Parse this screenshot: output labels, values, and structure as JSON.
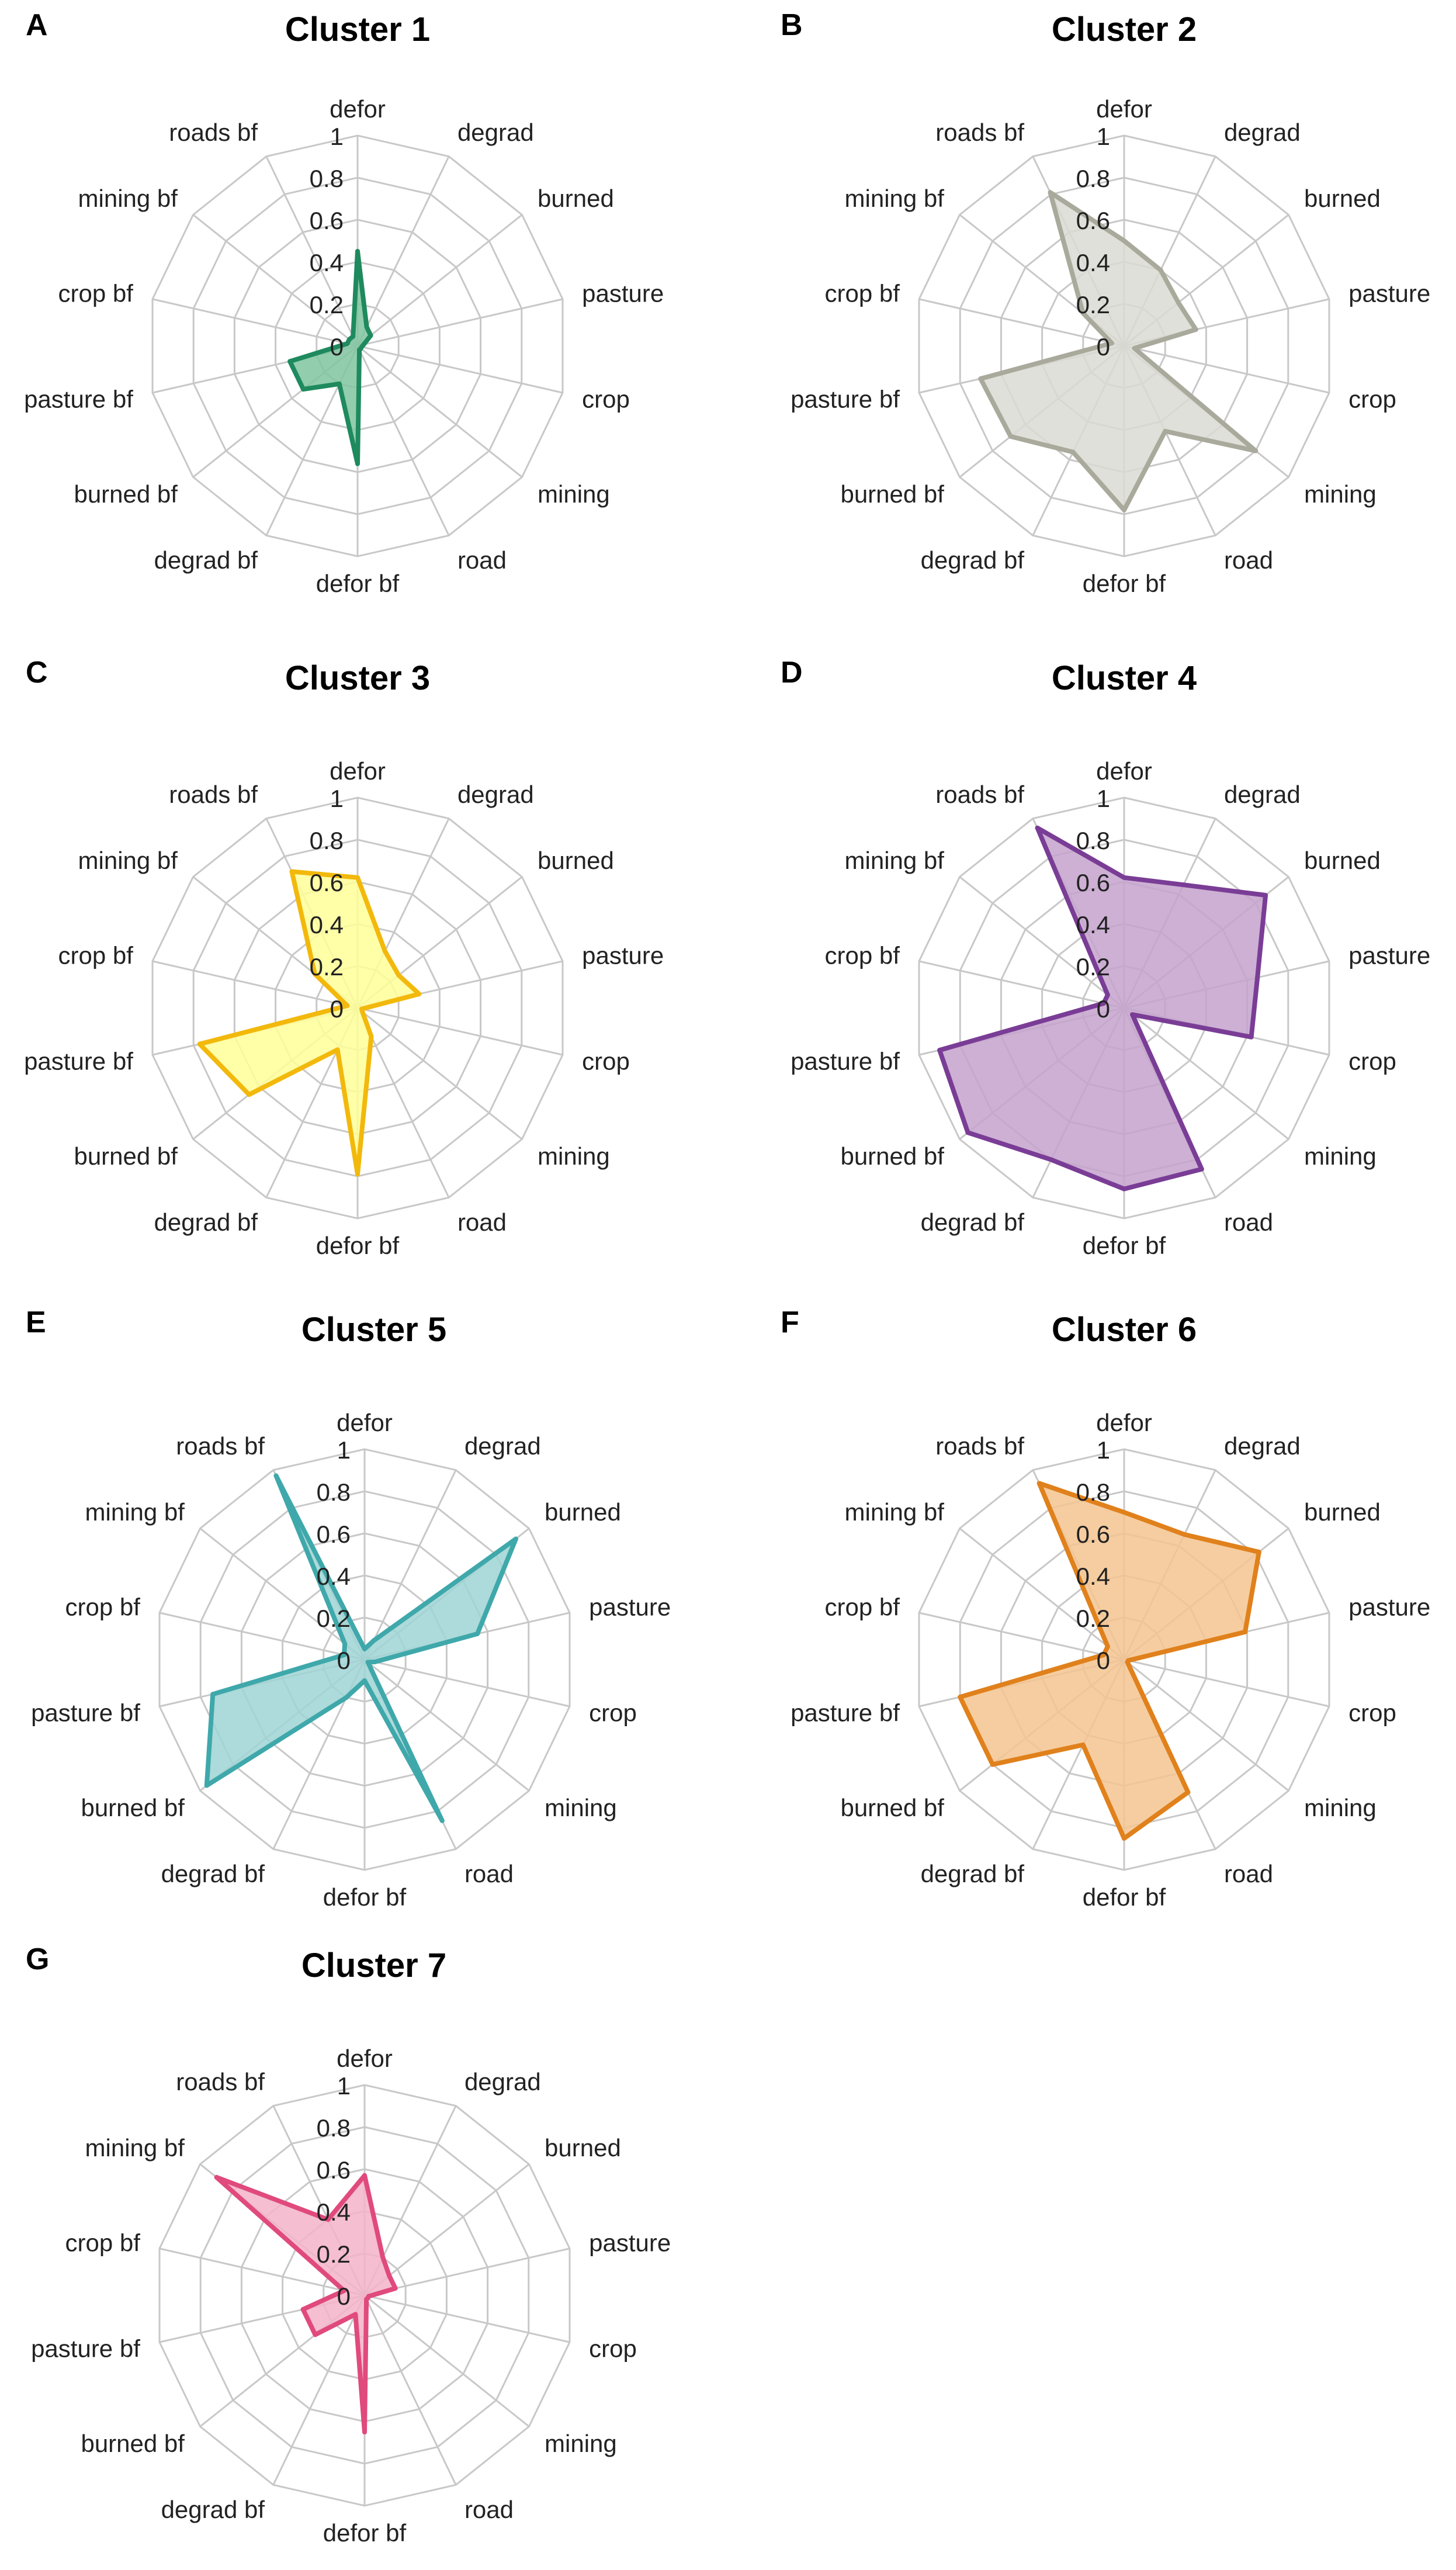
{
  "figure": {
    "grid_color": "#c8c8c8",
    "text_color": "#222222"
  },
  "chart_data": [
    {
      "panel_label": "A",
      "type": "radar",
      "title": "Cluster 1",
      "axes": [
        "defor",
        "degrad",
        "burned",
        "pasture",
        "crop",
        "mining",
        "road",
        "defor bf",
        "degrad bf",
        "burned bf",
        "pasture bf",
        "crop bf",
        "mining bf",
        "roads bf"
      ],
      "ticks": [
        "0",
        "0.2",
        "0.4",
        "0.6",
        "0.8",
        "1"
      ],
      "rlim": [
        0,
        1
      ],
      "values": [
        0.45,
        0.1,
        0.08,
        0.03,
        0.02,
        0.02,
        0.02,
        0.56,
        0.2,
        0.33,
        0.33,
        0.05,
        0.05,
        0.05
      ],
      "stroke": "#1e8a5e",
      "fill": "#7fc4a0"
    },
    {
      "panel_label": "B",
      "type": "radar",
      "title": "Cluster 2",
      "axes": [
        "defor",
        "degrad",
        "burned",
        "pasture",
        "crop",
        "mining",
        "road",
        "defor bf",
        "degrad bf",
        "burned bf",
        "pasture bf",
        "crop bf",
        "mining bf",
        "roads bf"
      ],
      "ticks": [
        "0",
        "0.2",
        "0.4",
        "0.6",
        "0.8",
        "1"
      ],
      "rlim": [
        0,
        1
      ],
      "values": [
        0.5,
        0.4,
        0.33,
        0.35,
        0.05,
        0.8,
        0.45,
        0.78,
        0.56,
        0.69,
        0.7,
        0.06,
        0.25,
        0.81
      ],
      "stroke": "#a9aa9c",
      "fill": "#d9dad2"
    },
    {
      "panel_label": "C",
      "type": "radar",
      "title": "Cluster 3",
      "axes": [
        "defor",
        "degrad",
        "burned",
        "pasture",
        "crop",
        "mining",
        "road",
        "defor bf",
        "degrad bf",
        "burned bf",
        "pasture bf",
        "crop bf",
        "mining bf",
        "roads bf"
      ],
      "ticks": [
        "0",
        "0.2",
        "0.4",
        "0.6",
        "0.8",
        "1"
      ],
      "rlim": [
        0,
        1
      ],
      "values": [
        0.62,
        0.3,
        0.25,
        0.3,
        0.02,
        0.03,
        0.15,
        0.79,
        0.22,
        0.66,
        0.77,
        0.05,
        0.26,
        0.72
      ],
      "stroke": "#f2b90c",
      "fill": "#ffff99"
    },
    {
      "panel_label": "D",
      "type": "radar",
      "title": "Cluster 4",
      "axes": [
        "defor",
        "degrad",
        "burned",
        "pasture",
        "crop",
        "mining",
        "road",
        "defor bf",
        "degrad bf",
        "burned bf",
        "pasture bf",
        "crop bf",
        "mining bf",
        "roads bf"
      ],
      "ticks": [
        "0",
        "0.2",
        "0.4",
        "0.6",
        "0.8",
        "1"
      ],
      "rlim": [
        0,
        1
      ],
      "values": [
        0.62,
        0.65,
        0.86,
        0.65,
        0.62,
        0.05,
        0.85,
        0.86,
        0.8,
        0.95,
        0.9,
        0.1,
        0.1,
        0.95
      ],
      "stroke": "#7a3d96",
      "fill": "#c4a2cc"
    },
    {
      "panel_label": "E",
      "type": "radar",
      "title": "Cluster 5",
      "axes": [
        "defor",
        "degrad",
        "burned",
        "pasture",
        "crop",
        "mining",
        "road",
        "defor bf",
        "degrad bf",
        "burned bf",
        "pasture bf",
        "crop bf",
        "mining bf",
        "roads bf"
      ],
      "ticks": [
        "0",
        "0.2",
        "0.4",
        "0.6",
        "0.8",
        "1"
      ],
      "rlim": [
        0,
        1
      ],
      "values": [
        0.05,
        0.1,
        0.92,
        0.55,
        0.05,
        0.02,
        0.85,
        0.1,
        0.2,
        0.96,
        0.74,
        0.1,
        0.12,
        0.97
      ],
      "stroke": "#3fa8ab",
      "fill": "#9fd3d3"
    },
    {
      "panel_label": "F",
      "type": "radar",
      "title": "Cluster 6",
      "axes": [
        "defor",
        "degrad",
        "burned",
        "pasture",
        "crop",
        "mining",
        "road",
        "defor bf",
        "degrad bf",
        "burned bf",
        "pasture bf",
        "crop bf",
        "mining bf",
        "roads bf"
      ],
      "ticks": [
        "0",
        "0.2",
        "0.4",
        "0.6",
        "0.8",
        "1"
      ],
      "rlim": [
        0,
        1
      ],
      "values": [
        0.7,
        0.66,
        0.82,
        0.59,
        0.02,
        0.02,
        0.7,
        0.85,
        0.45,
        0.8,
        0.8,
        0.1,
        0.1,
        0.93
      ],
      "stroke": "#e0811c",
      "fill": "#f5c48f"
    },
    {
      "panel_label": "G",
      "type": "radar",
      "title": "Cluster 7",
      "axes": [
        "defor",
        "degrad",
        "burned",
        "pasture",
        "crop",
        "mining",
        "road",
        "defor bf",
        "degrad bf",
        "burned bf",
        "pasture bf",
        "crop bf",
        "mining bf",
        "roads bf"
      ],
      "ticks": [
        "0",
        "0.2",
        "0.4",
        "0.6",
        "0.8",
        "1"
      ],
      "rlim": [
        0,
        1
      ],
      "values": [
        0.57,
        0.2,
        0.15,
        0.15,
        0.02,
        0.02,
        0.02,
        0.65,
        0.1,
        0.3,
        0.3,
        0.1,
        0.9,
        0.4
      ],
      "stroke": "#e04a7d",
      "fill": "#f5b3c9"
    }
  ]
}
